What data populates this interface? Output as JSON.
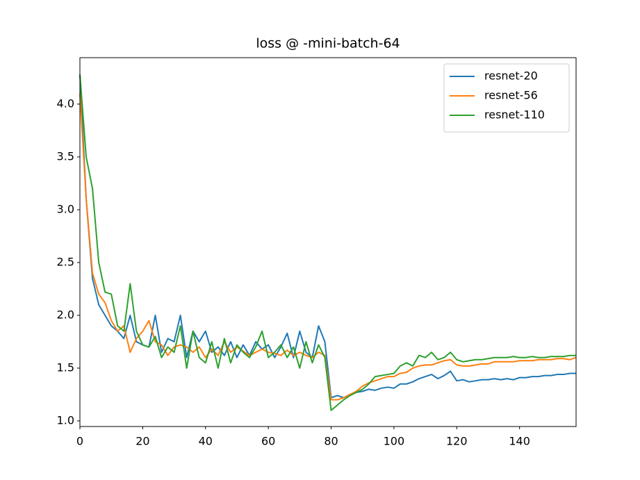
{
  "chart_data": {
    "type": "line",
    "title": "loss @ -mini-batch-64",
    "x": [
      0,
      2,
      4,
      6,
      8,
      10,
      12,
      14,
      16,
      18,
      20,
      22,
      24,
      26,
      28,
      30,
      32,
      34,
      36,
      38,
      40,
      42,
      44,
      46,
      48,
      50,
      52,
      54,
      56,
      58,
      60,
      62,
      64,
      66,
      68,
      70,
      72,
      74,
      76,
      78,
      80,
      82,
      84,
      86,
      88,
      90,
      92,
      94,
      96,
      98,
      100,
      102,
      104,
      106,
      108,
      110,
      112,
      114,
      116,
      118,
      120,
      122,
      124,
      126,
      128,
      130,
      132,
      134,
      136,
      138,
      140,
      142,
      144,
      146,
      148,
      150,
      152,
      154,
      156,
      158
    ],
    "series": [
      {
        "name": "resnet-20",
        "color": "#1f77b4",
        "values": [
          4.28,
          3.1,
          2.35,
          2.1,
          2.0,
          1.9,
          1.85,
          1.78,
          2.0,
          1.75,
          1.72,
          1.7,
          2.0,
          1.65,
          1.78,
          1.75,
          2.0,
          1.6,
          1.85,
          1.75,
          1.85,
          1.65,
          1.7,
          1.62,
          1.75,
          1.6,
          1.72,
          1.62,
          1.75,
          1.68,
          1.72,
          1.6,
          1.7,
          1.83,
          1.6,
          1.85,
          1.65,
          1.6,
          1.9,
          1.75,
          1.22,
          1.24,
          1.22,
          1.25,
          1.27,
          1.28,
          1.3,
          1.29,
          1.31,
          1.32,
          1.31,
          1.35,
          1.35,
          1.37,
          1.4,
          1.42,
          1.44,
          1.4,
          1.43,
          1.47,
          1.38,
          1.39,
          1.37,
          1.38,
          1.39,
          1.39,
          1.4,
          1.39,
          1.4,
          1.39,
          1.41,
          1.41,
          1.42,
          1.42,
          1.43,
          1.43,
          1.44,
          1.44,
          1.45,
          1.45
        ]
      },
      {
        "name": "resnet-56",
        "color": "#ff7f0e",
        "values": [
          4.1,
          3.1,
          2.4,
          2.2,
          2.12,
          1.95,
          1.85,
          1.9,
          1.65,
          1.78,
          1.85,
          1.95,
          1.75,
          1.72,
          1.62,
          1.7,
          1.72,
          1.7,
          1.65,
          1.7,
          1.6,
          1.68,
          1.62,
          1.75,
          1.65,
          1.7,
          1.66,
          1.62,
          1.65,
          1.68,
          1.65,
          1.64,
          1.62,
          1.67,
          1.62,
          1.65,
          1.62,
          1.6,
          1.65,
          1.62,
          1.2,
          1.2,
          1.22,
          1.25,
          1.28,
          1.33,
          1.36,
          1.38,
          1.4,
          1.42,
          1.42,
          1.45,
          1.46,
          1.5,
          1.52,
          1.53,
          1.53,
          1.55,
          1.57,
          1.58,
          1.53,
          1.52,
          1.52,
          1.53,
          1.54,
          1.54,
          1.56,
          1.56,
          1.56,
          1.56,
          1.57,
          1.57,
          1.57,
          1.58,
          1.58,
          1.58,
          1.59,
          1.59,
          1.58,
          1.6
        ]
      },
      {
        "name": "resnet-110",
        "color": "#2ca02c",
        "values": [
          4.28,
          3.5,
          3.2,
          2.5,
          2.22,
          2.2,
          1.9,
          1.85,
          2.3,
          1.85,
          1.72,
          1.7,
          1.8,
          1.6,
          1.7,
          1.65,
          1.9,
          1.5,
          1.85,
          1.6,
          1.55,
          1.75,
          1.5,
          1.78,
          1.55,
          1.72,
          1.65,
          1.6,
          1.7,
          1.85,
          1.6,
          1.65,
          1.72,
          1.6,
          1.7,
          1.5,
          1.75,
          1.55,
          1.72,
          1.6,
          1.1,
          1.15,
          1.2,
          1.24,
          1.27,
          1.3,
          1.35,
          1.42,
          1.43,
          1.44,
          1.45,
          1.52,
          1.55,
          1.52,
          1.62,
          1.6,
          1.65,
          1.58,
          1.6,
          1.65,
          1.58,
          1.56,
          1.57,
          1.58,
          1.58,
          1.59,
          1.6,
          1.6,
          1.6,
          1.61,
          1.6,
          1.6,
          1.61,
          1.6,
          1.6,
          1.61,
          1.61,
          1.61,
          1.62,
          1.62
        ]
      }
    ],
    "xlim": [
      0,
      158
    ],
    "ylim": [
      0.947,
      4.44
    ],
    "xticks": [
      0,
      20,
      40,
      60,
      80,
      100,
      120,
      140
    ],
    "yticks": [
      {
        "value": 1,
        "label": "1.0"
      },
      1.5,
      {
        "value": 2,
        "label": "2.0"
      },
      2.5,
      {
        "value": 3,
        "label": "3.0"
      },
      3.5,
      {
        "value": 4,
        "label": "4.0"
      }
    ],
    "legend": "upper right",
    "grid": false
  }
}
